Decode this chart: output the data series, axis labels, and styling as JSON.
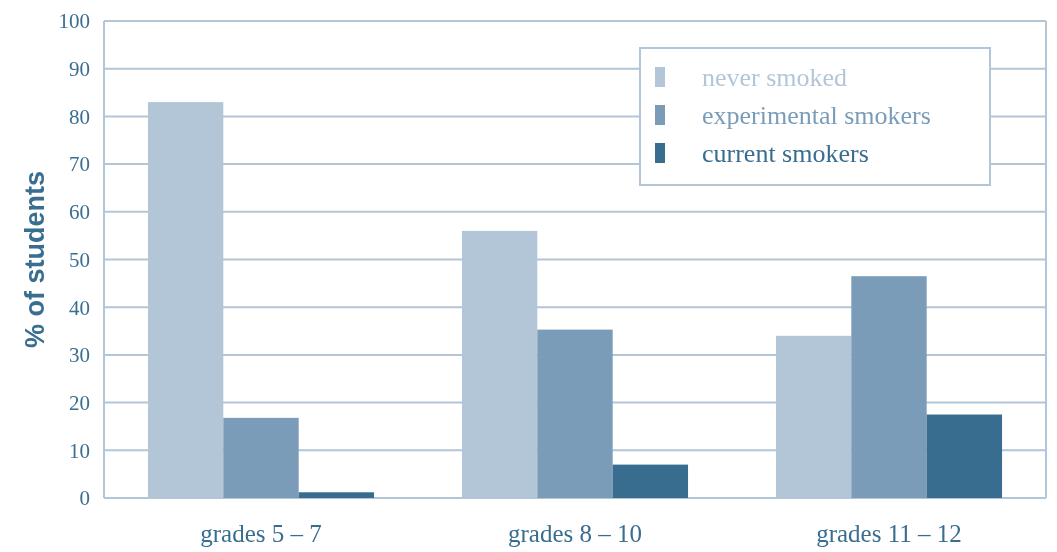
{
  "chart_data": {
    "type": "bar",
    "ylabel": "% of students",
    "categories": [
      "grades 5 – 7",
      "grades 8 – 10",
      "grades 11 – 12"
    ],
    "series": [
      {
        "name": "never smoked",
        "color": "#b3c6d8",
        "values": [
          83,
          56,
          34
        ]
      },
      {
        "name": "experimental smokers",
        "color": "#7a9cb8",
        "values": [
          16.8,
          35.3,
          46.5
        ]
      },
      {
        "name": "current smokers",
        "color": "#386d8f",
        "values": [
          1.2,
          7,
          17.5
        ]
      }
    ],
    "ylim": [
      0,
      100
    ],
    "yticks": [
      0,
      10,
      20,
      30,
      40,
      50,
      60,
      70,
      80,
      90,
      100
    ],
    "grid": "y",
    "legend": "top right"
  }
}
